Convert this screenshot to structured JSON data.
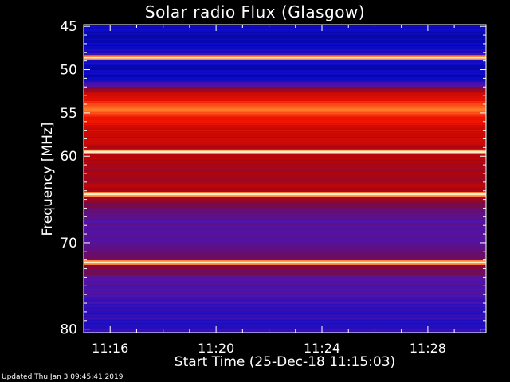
{
  "chart_data": {
    "type": "heatmap",
    "title": "Solar radio Flux (Glasgow)",
    "xlabel": "Start Time (25-Dec-18 11:15:03)",
    "ylabel": "Frequency [MHz]",
    "x_ticks": [
      "11:16",
      "11:20",
      "11:24",
      "11:28"
    ],
    "x_tick_minutes": [
      1,
      5,
      9,
      13
    ],
    "x_range_minutes_from_11_15": [
      0,
      15.2
    ],
    "y_ticks": [
      45,
      50,
      55,
      60,
      70,
      80
    ],
    "ylim": [
      44.8,
      80.4
    ],
    "bright_lines_mhz": [
      48.6,
      59.5,
      64.4,
      72.3
    ],
    "intensity_profile": [
      {
        "f": 44.8,
        "v": 0.1
      },
      {
        "f": 45.2,
        "v": 0.14
      },
      {
        "f": 46.0,
        "v": 0.08
      },
      {
        "f": 47.5,
        "v": 0.12
      },
      {
        "f": 48.2,
        "v": 0.22
      },
      {
        "f": 49.0,
        "v": 0.16
      },
      {
        "f": 49.8,
        "v": 0.1
      },
      {
        "f": 51.0,
        "v": 0.12
      },
      {
        "f": 51.8,
        "v": 0.3
      },
      {
        "f": 52.6,
        "v": 0.62
      },
      {
        "f": 53.5,
        "v": 0.7
      },
      {
        "f": 54.5,
        "v": 0.86
      },
      {
        "f": 55.5,
        "v": 0.72
      },
      {
        "f": 57.0,
        "v": 0.62
      },
      {
        "f": 58.5,
        "v": 0.58
      },
      {
        "f": 60.5,
        "v": 0.54
      },
      {
        "f": 62.0,
        "v": 0.5
      },
      {
        "f": 63.5,
        "v": 0.56
      },
      {
        "f": 65.0,
        "v": 0.46
      },
      {
        "f": 66.5,
        "v": 0.34
      },
      {
        "f": 68.0,
        "v": 0.28
      },
      {
        "f": 70.0,
        "v": 0.3
      },
      {
        "f": 71.5,
        "v": 0.4
      },
      {
        "f": 73.0,
        "v": 0.42
      },
      {
        "f": 74.5,
        "v": 0.3
      },
      {
        "f": 76.5,
        "v": 0.24
      },
      {
        "f": 78.5,
        "v": 0.2
      },
      {
        "f": 80.4,
        "v": 0.2
      }
    ]
  },
  "footer": {
    "updated_text": "Updated Thu Jan  3 09:45:41 2019"
  }
}
